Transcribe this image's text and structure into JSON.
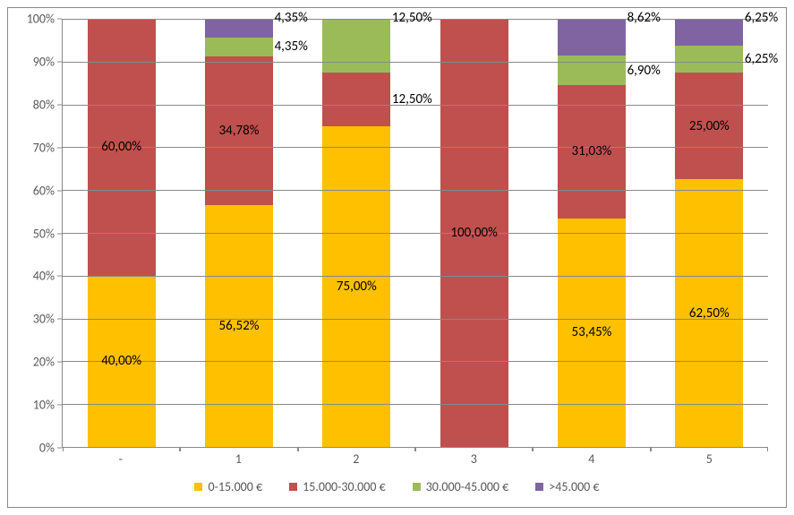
{
  "chart": {
    "type": "stacked-bar-100",
    "background_color": "#ffffff",
    "border_color": "#898989",
    "grid_color": "#898989",
    "axis_text_color": "#595959",
    "label_color": "#000000",
    "label_fontsize": 15,
    "axis_fontsize": 14,
    "y": {
      "min": 0,
      "max": 100,
      "step": 10,
      "suffix": "%"
    },
    "categories": [
      "-",
      "1",
      "2",
      "3",
      "4",
      "5"
    ],
    "series": [
      {
        "name": "0-15.000 €",
        "color": "#ffc000"
      },
      {
        "name": "15.000-30.000 €",
        "color": "#c0504d"
      },
      {
        "name": "30.000-45.000 €",
        "color": "#9bbb59"
      },
      {
        "name": ">45.000 €",
        "color": "#8064a2"
      }
    ],
    "data": [
      {
        "cat": "-",
        "segments": [
          {
            "series": 0,
            "value": 40.0,
            "label": "40,00%",
            "label_pos": "inside"
          },
          {
            "series": 1,
            "value": 60.0,
            "label": "60,00%",
            "label_pos": "inside"
          }
        ]
      },
      {
        "cat": "1",
        "segments": [
          {
            "series": 0,
            "value": 56.52,
            "label": "56,52%",
            "label_pos": "inside"
          },
          {
            "series": 1,
            "value": 34.78,
            "label": "34,78%",
            "label_pos": "inside"
          },
          {
            "series": 2,
            "value": 4.35,
            "label": "4,35%",
            "label_pos": "right"
          },
          {
            "series": 3,
            "value": 4.35,
            "label": "4,35%",
            "label_pos": "right-up"
          }
        ]
      },
      {
        "cat": "2",
        "segments": [
          {
            "series": 0,
            "value": 75.0,
            "label": "75,00%",
            "label_pos": "inside"
          },
          {
            "series": 1,
            "value": 12.5,
            "label": "12,50%",
            "label_pos": "right"
          },
          {
            "series": 2,
            "value": 12.5,
            "label": "12,50%",
            "label_pos": "right-up"
          }
        ]
      },
      {
        "cat": "3",
        "segments": [
          {
            "series": 1,
            "value": 100.0,
            "label": "100,00%",
            "label_pos": "inside"
          }
        ]
      },
      {
        "cat": "4",
        "segments": [
          {
            "series": 0,
            "value": 53.45,
            "label": "53,45%",
            "label_pos": "inside"
          },
          {
            "series": 1,
            "value": 31.03,
            "label": "31,03%",
            "label_pos": "inside"
          },
          {
            "series": 2,
            "value": 6.9,
            "label": "6,90%",
            "label_pos": "right"
          },
          {
            "series": 3,
            "value": 8.62,
            "label": "8,62%",
            "label_pos": "right-up"
          }
        ]
      },
      {
        "cat": "5",
        "segments": [
          {
            "series": 0,
            "value": 62.5,
            "label": "62,50%",
            "label_pos": "inside"
          },
          {
            "series": 1,
            "value": 25.0,
            "label": "25,00%",
            "label_pos": "inside"
          },
          {
            "series": 2,
            "value": 6.25,
            "label": "6,25%",
            "label_pos": "right"
          },
          {
            "series": 3,
            "value": 6.25,
            "label": "6,25%",
            "label_pos": "right-up"
          }
        ]
      }
    ]
  }
}
